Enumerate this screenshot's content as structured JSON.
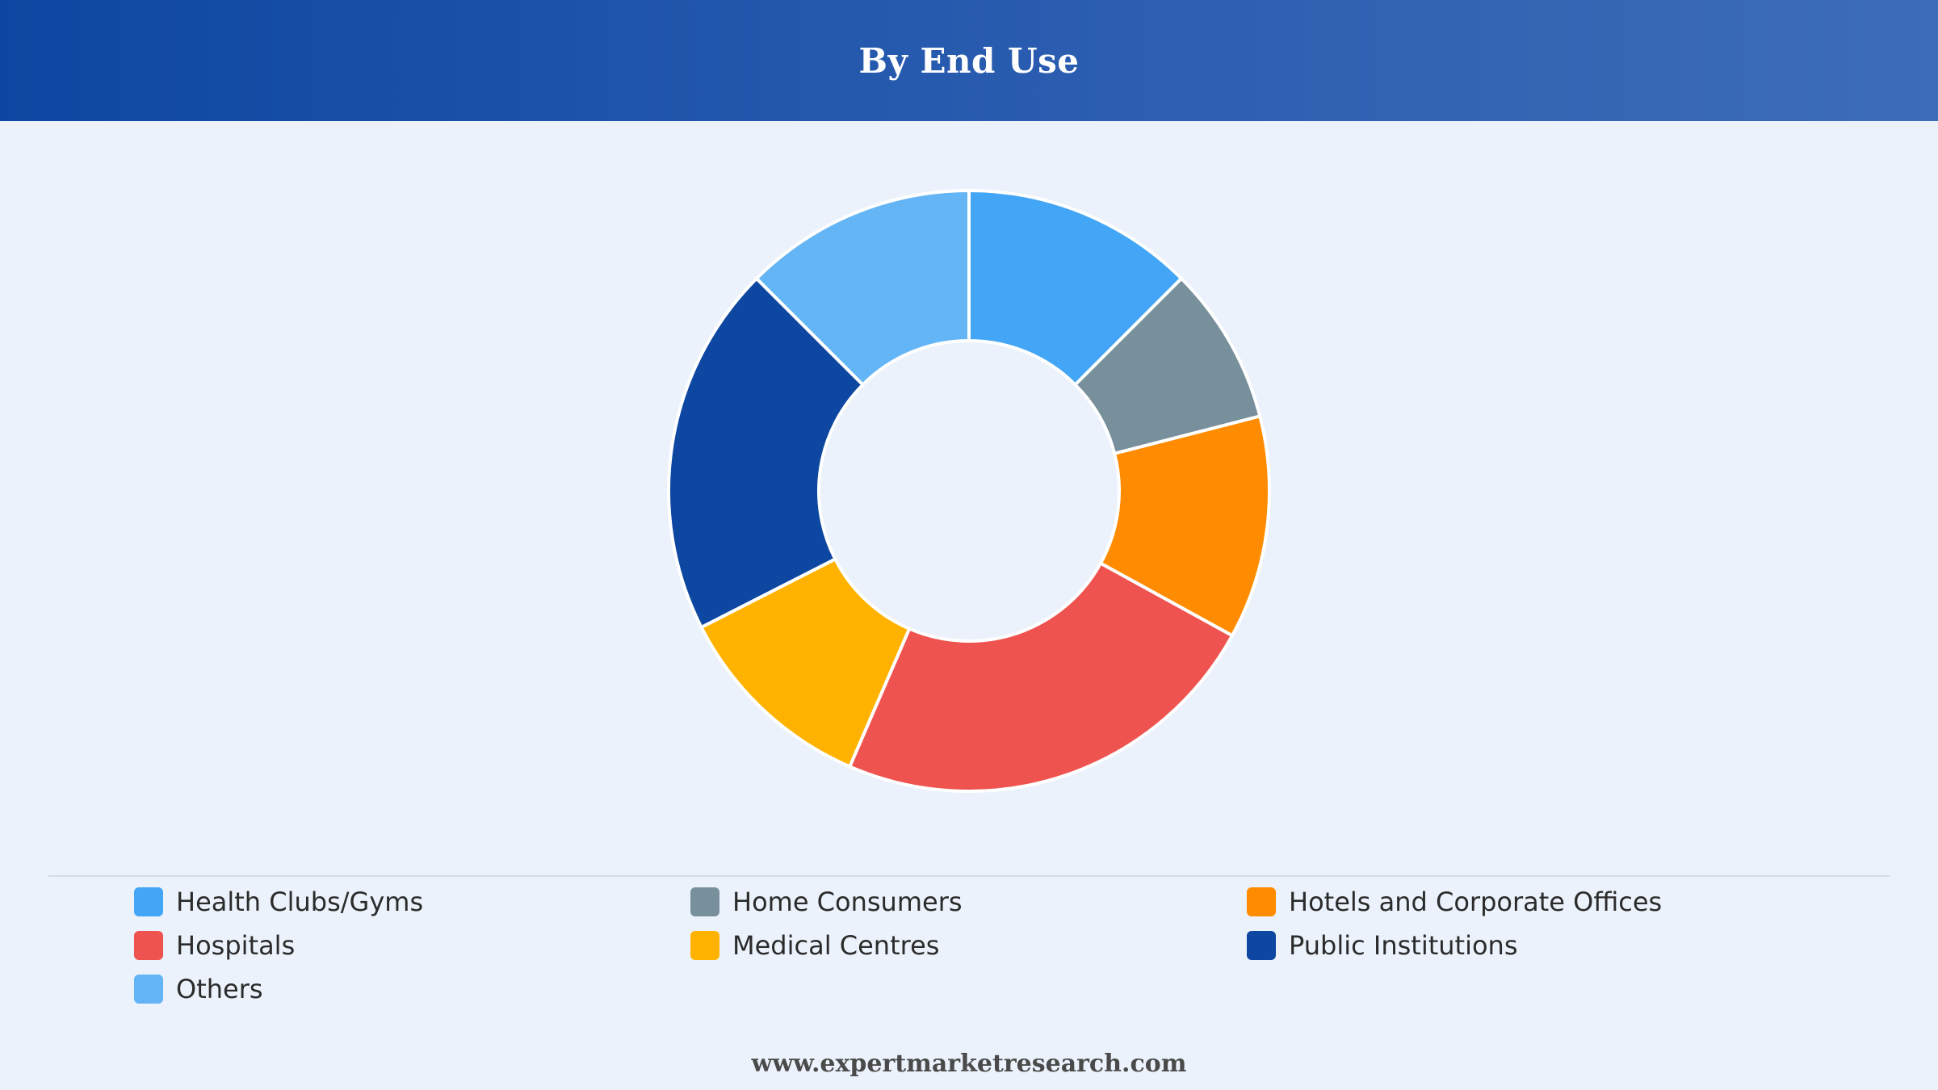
{
  "header": {
    "title": "By End Use"
  },
  "chart_data": {
    "type": "pie",
    "subtype": "donut",
    "title": "By End Use",
    "categories": [
      "Health Clubs/Gyms",
      "Home Consumers",
      "Hotels and Corporate Offices",
      "Hospitals",
      "Medical Centres",
      "Public Institutions",
      "Others"
    ],
    "values": [
      12.5,
      8.5,
      12,
      23.5,
      11,
      20,
      12.5
    ],
    "colors": [
      "#42a5f5",
      "#78909c",
      "#ff8c00",
      "#ef5350",
      "#ffb300",
      "#0d47a1",
      "#64b5f6"
    ],
    "legend_position": "bottom"
  },
  "footer": {
    "text": "www.expertmarketresearch.com"
  }
}
